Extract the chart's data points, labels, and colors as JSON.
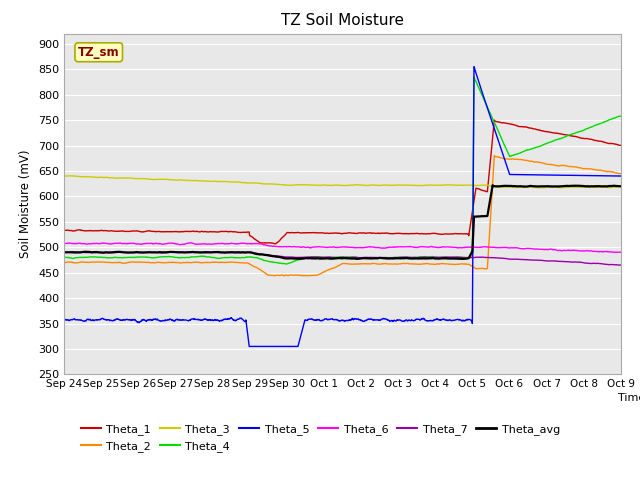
{
  "title": "TZ Soil Moisture",
  "xlabel": "Time",
  "ylabel": "Soil Moisture (mV)",
  "ylim": [
    250,
    920
  ],
  "yticks": [
    250,
    300,
    350,
    400,
    450,
    500,
    550,
    600,
    650,
    700,
    750,
    800,
    850,
    900
  ],
  "series_colors": {
    "Theta_1": "#cc0000",
    "Theta_2": "#ff8800",
    "Theta_3": "#cccc00",
    "Theta_4": "#00dd00",
    "Theta_5": "#0000ff",
    "Theta_6": "#ff00ff",
    "Theta_7": "#9900aa",
    "Theta_avg": "#000000"
  },
  "tick_labels": [
    "Sep 24",
    "Sep 25",
    "Sep 26",
    "Sep 27",
    "Sep 28",
    "Sep 29",
    "Sep 30",
    "Oct 1",
    "Oct 2",
    "Oct 3",
    "Oct 4",
    "Oct 5",
    "Oct 6",
    "Oct 7",
    "Oct 8",
    "Oct 9"
  ],
  "tick_positions": [
    0,
    1,
    2,
    3,
    4,
    5,
    6,
    7,
    8,
    9,
    10,
    11,
    12,
    13,
    14,
    15
  ]
}
